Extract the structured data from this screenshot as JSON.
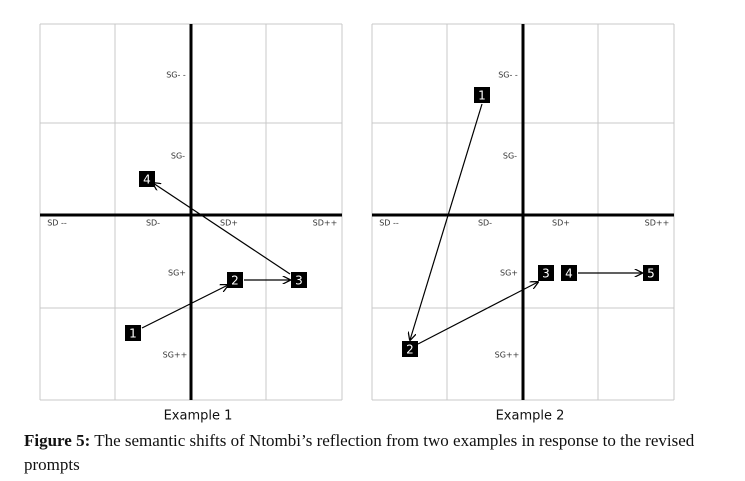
{
  "panels": [
    {
      "caption": "Example 1",
      "axis_labels": [
        "SG- -",
        "SG-",
        "SD --",
        "SD-",
        "SD+",
        "SD++",
        "SG+",
        "SG++"
      ],
      "markers": [
        "1",
        "2",
        "3",
        "4"
      ]
    },
    {
      "caption": "Example 2",
      "axis_labels": [
        "SG- -",
        "SG-",
        "SD --",
        "SD-",
        "SD+",
        "SD++",
        "SG+",
        "SG++"
      ],
      "markers": [
        "1",
        "2",
        "3",
        "4",
        "5"
      ]
    }
  ],
  "figure": {
    "label": "Figure 5:",
    "text": " The semantic shifts of Ntombi’s reflection from two examples in response to the revised prompts"
  }
}
